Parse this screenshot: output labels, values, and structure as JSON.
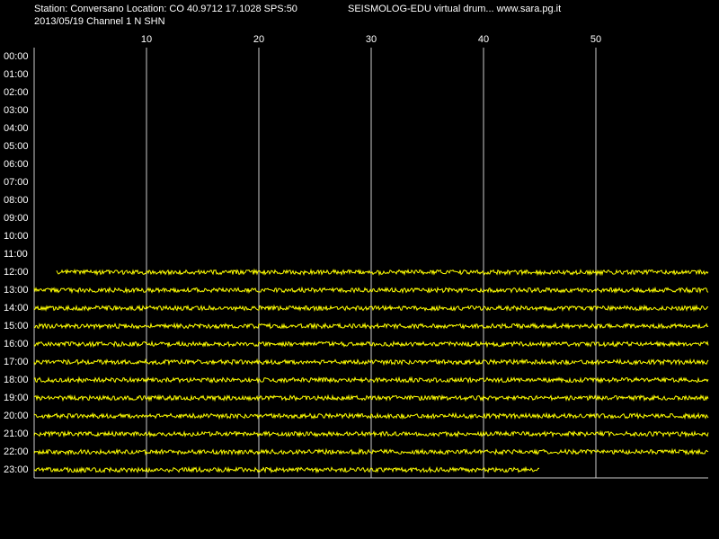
{
  "header": {
    "station": "Station: Conversano Location: CO 40.9712 17.1028 SPS:50",
    "source": "SEISMOLOG-EDU virtual drum... www.sara.pg.it",
    "date_channel": "2013/05/19  Channel 1 N SHN"
  },
  "chart_data": {
    "type": "drum",
    "color": "#ffff00",
    "xlim": [
      0,
      60
    ],
    "xticks": [
      10,
      20,
      30,
      40,
      50
    ],
    "grid": true,
    "rows": [
      "00:00",
      "01:00",
      "02:00",
      "03:00",
      "04:00",
      "05:00",
      "06:00",
      "07:00",
      "08:00",
      "09:00",
      "10:00",
      "11:00",
      "12:00",
      "13:00",
      "14:00",
      "15:00",
      "16:00",
      "17:00",
      "18:00",
      "19:00",
      "20:00",
      "21:00",
      "22:00",
      "23:00"
    ],
    "trace_start": [
      null,
      null,
      null,
      null,
      null,
      null,
      null,
      null,
      null,
      null,
      null,
      null,
      2,
      0,
      0,
      0,
      0,
      0,
      0,
      0,
      0,
      0,
      0,
      0
    ],
    "trace_end": [
      null,
      null,
      null,
      null,
      null,
      null,
      null,
      null,
      null,
      null,
      null,
      null,
      60,
      60,
      60,
      60,
      60,
      60,
      60,
      60,
      60,
      60,
      60,
      45
    ]
  }
}
